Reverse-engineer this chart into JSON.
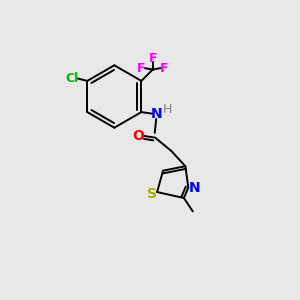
{
  "background_color": "#e8e8e8",
  "atom_colors": {
    "C": "#000000",
    "H": "#808080",
    "N": "#0000ff",
    "O": "#ff0000",
    "F": "#ff00ff",
    "Cl": "#00bb00",
    "S": "#aaaa00"
  },
  "figsize": [
    3.0,
    3.0
  ],
  "dpi": 100,
  "lw": 1.4,
  "bond_color": "#000000"
}
